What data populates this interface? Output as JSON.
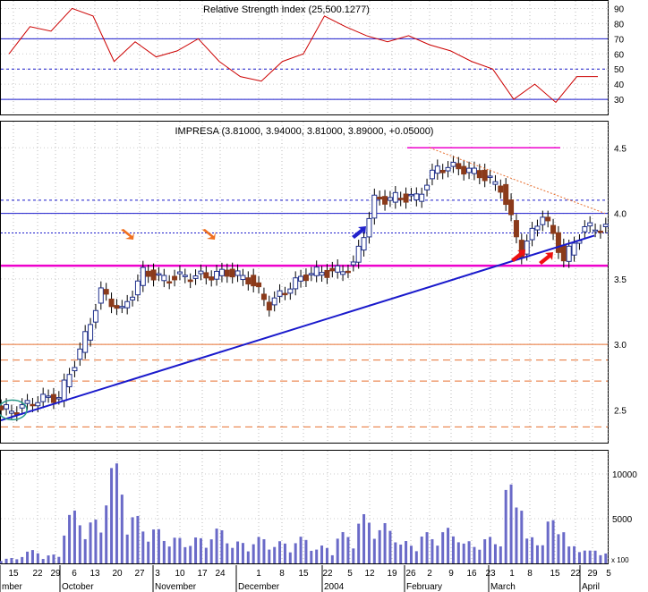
{
  "rsi": {
    "title": "Relative Strength Index (25,500.1277)",
    "ticks": [
      "90",
      "80",
      "70",
      "60",
      "50",
      "40",
      "30"
    ],
    "ylim": [
      20,
      95
    ]
  },
  "price": {
    "title": "IMPRESA (3.81000, 3.94000, 3.81000, 3.89000, +0.05000)",
    "ticks": [
      "4.5",
      "4.0",
      "3.5",
      "3.0",
      "2.5"
    ],
    "ylim": [
      2.25,
      4.7
    ]
  },
  "volume": {
    "ticks": [
      "10000",
      "5000"
    ],
    "unit": "x 100",
    "ylim": [
      0,
      12000
    ]
  },
  "xaxis": {
    "day_labels": [
      "15",
      "22",
      "29",
      "6",
      "13",
      "20",
      "27",
      "3",
      "10",
      "17",
      "24",
      "1",
      "8",
      "15",
      "22",
      "5",
      "12",
      "19",
      "26",
      "2",
      "9",
      "16",
      "23",
      "1",
      "8",
      "15",
      "22",
      "29",
      "5"
    ],
    "month_labels": [
      "mber",
      "October",
      "November",
      "December",
      "2004",
      "February",
      "March",
      "April"
    ]
  },
  "colors": {
    "up": "#1f2f8c",
    "down": "#8b3a1a",
    "rsi_line": "#cc0000",
    "trend": "#1a1acc",
    "support": "#ee00cc",
    "dashed": "#e87030",
    "arrow_orange": "#f07020",
    "arrow_blue": "#2222cc",
    "arrow_red": "#ee1111",
    "volume": "#6a6ac8"
  },
  "chart_data": {
    "type": "candlestick",
    "dates": [
      "2003-09-11",
      "2003-09-18",
      "2003-09-25",
      "2003-10-02",
      "2003-10-09",
      "2003-10-16",
      "2003-10-23",
      "2003-10-30",
      "2003-11-06",
      "2003-11-13",
      "2003-11-20",
      "2003-11-27",
      "2003-12-04",
      "2003-12-11",
      "2003-12-18",
      "2003-12-25",
      "2004-01-01",
      "2004-01-08",
      "2004-01-15",
      "2004-01-22",
      "2004-01-29",
      "2004-02-05",
      "2004-02-12",
      "2004-02-19",
      "2004-02-26",
      "2004-03-04",
      "2004-03-11",
      "2004-03-18",
      "2004-03-25"
    ],
    "close": [
      2.5,
      2.58,
      2.6,
      2.95,
      3.4,
      3.25,
      3.55,
      3.5,
      3.52,
      3.52,
      3.55,
      3.5,
      3.3,
      3.45,
      3.55,
      3.55,
      3.6,
      4.1,
      4.12,
      4.12,
      4.35,
      4.35,
      4.3,
      4.2,
      3.7,
      4.0,
      3.65,
      3.89,
      3.89
    ],
    "volume": [
      600,
      1500,
      1000,
      6000,
      5000,
      11500,
      5500,
      4000,
      3000,
      3000,
      4000,
      2500,
      3000,
      2500,
      3000,
      2000,
      3500,
      5500,
      4500,
      2500,
      3500,
      4000,
      2500,
      3000,
      9000,
      3000,
      5000,
      2000,
      1500
    ],
    "rsi": [
      60,
      78,
      75,
      90,
      85,
      55,
      68,
      58,
      62,
      70,
      55,
      45,
      42,
      55,
      60,
      85,
      78,
      72,
      68,
      72,
      66,
      62,
      55,
      50,
      30,
      40,
      28,
      45,
      45
    ],
    "series": [
      {
        "name": "Relative Strength Index (25,500.1277)"
      },
      {
        "name": "IMPRESA (3.81000, 3.94000, 3.81000, 3.89000, +0.05000)"
      }
    ]
  }
}
